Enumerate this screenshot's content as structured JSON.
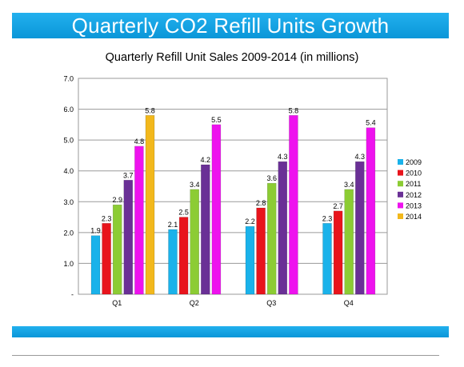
{
  "header": {
    "title": "Quarterly CO2 Refill Units Growth"
  },
  "chart_data": {
    "type": "bar",
    "title": "Quarterly Refill Unit Sales 2009-2014 (in millions)",
    "xlabel": "",
    "ylabel": "",
    "categories": [
      "Q1",
      "Q2",
      "Q3",
      "Q4"
    ],
    "ylim": [
      0,
      7
    ],
    "yticks": [
      "-",
      "1.0",
      "2.0",
      "3.0",
      "4.0",
      "5.0",
      "6.0",
      "7.0"
    ],
    "grid": true,
    "legend_position": "right",
    "series": [
      {
        "name": "2009",
        "color": "#1ab2ea",
        "values": [
          1.9,
          2.1,
          2.2,
          2.3
        ],
        "labels": [
          "1.9",
          "2.1",
          "2.2",
          "2.3"
        ]
      },
      {
        "name": "2010",
        "color": "#e8141c",
        "values": [
          2.3,
          2.5,
          2.8,
          2.7
        ],
        "labels": [
          "2.3",
          "2.5",
          "2.8",
          "2.7"
        ]
      },
      {
        "name": "2011",
        "color": "#8ccc34",
        "values": [
          2.9,
          3.4,
          3.6,
          3.4
        ],
        "labels": [
          "2.9",
          "3.4",
          "3.6",
          "3.4"
        ]
      },
      {
        "name": "2012",
        "color": "#6a3096",
        "values": [
          3.7,
          4.2,
          4.3,
          4.3
        ],
        "labels": [
          "3.7",
          "4.2",
          "4.3",
          "4.3"
        ]
      },
      {
        "name": "2013",
        "color": "#ee12ee",
        "values": [
          4.8,
          5.5,
          5.8,
          5.4
        ],
        "labels": [
          "4.8",
          "5.5",
          "5.8",
          "5.4"
        ]
      },
      {
        "name": "2014",
        "color": "#f2b81c",
        "values": [
          5.8,
          null,
          null,
          null
        ],
        "labels": [
          "5.8",
          null,
          null,
          null
        ]
      }
    ]
  }
}
